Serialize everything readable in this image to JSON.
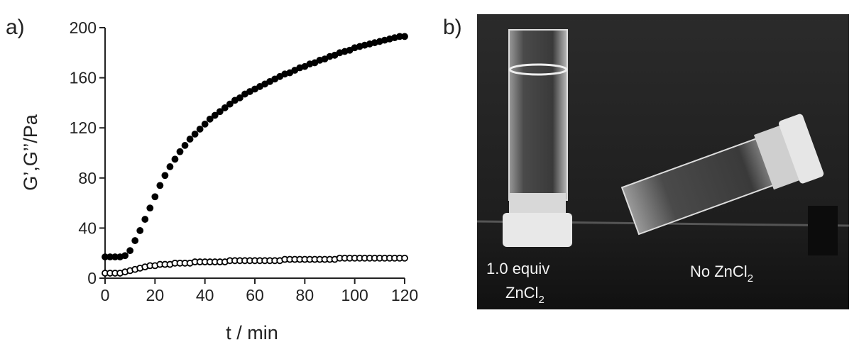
{
  "chart_data": {
    "type": "scatter",
    "xlabel": "t / min",
    "ylabel": "G’,G’’/Pa",
    "xlim": [
      0,
      120
    ],
    "xticks": [
      0,
      20,
      40,
      60,
      80,
      100,
      120
    ],
    "ylim": [
      0,
      200
    ],
    "yticks": [
      0,
      40,
      80,
      120,
      160,
      200
    ],
    "grid": false,
    "x": [
      0,
      2,
      4,
      6,
      8,
      10,
      12,
      14,
      16,
      18,
      20,
      22,
      24,
      26,
      28,
      30,
      32,
      34,
      36,
      38,
      40,
      42,
      44,
      46,
      48,
      50,
      52,
      54,
      56,
      58,
      60,
      62,
      64,
      66,
      68,
      70,
      72,
      74,
      76,
      78,
      80,
      82,
      84,
      86,
      88,
      90,
      92,
      94,
      96,
      98,
      100,
      102,
      104,
      106,
      108,
      110,
      112,
      114,
      116,
      118,
      120
    ],
    "series": [
      {
        "color": "#000000",
        "marker_fill": "#000000",
        "values": [
          17,
          17,
          17,
          17,
          18,
          22,
          30,
          38,
          47,
          56,
          65,
          74,
          82,
          89,
          95,
          101,
          106,
          111,
          115,
          119,
          123,
          127,
          130,
          133,
          136,
          139,
          142,
          144,
          147,
          149,
          151,
          153,
          155,
          157,
          159,
          161,
          163,
          164,
          166,
          168,
          169,
          171,
          172,
          174,
          175,
          177,
          178,
          180,
          181,
          182,
          184,
          185,
          186,
          187,
          188,
          189,
          190,
          191,
          192,
          193,
          193
        ]
      },
      {
        "color": "#000000",
        "marker_fill": "#ffffff",
        "values": [
          4,
          4,
          4,
          4,
          5,
          6,
          7,
          8,
          9,
          10,
          10,
          11,
          11,
          11,
          12,
          12,
          12,
          12,
          13,
          13,
          13,
          13,
          13,
          13,
          13,
          14,
          14,
          14,
          14,
          14,
          14,
          14,
          14,
          14,
          14,
          14,
          15,
          15,
          15,
          15,
          15,
          15,
          15,
          15,
          15,
          15,
          15,
          16,
          16,
          16,
          16,
          16,
          16,
          16,
          16,
          16,
          16,
          16,
          16,
          16,
          16
        ]
      }
    ]
  },
  "panels": {
    "a": "a)",
    "b": "b)"
  },
  "photo": {
    "left_label": {
      "line1": "1.0 equiv",
      "line2": "ZnCl",
      "line2_sub": "2"
    },
    "right_label": {
      "text": "No ZnCl",
      "sub": "2"
    }
  }
}
